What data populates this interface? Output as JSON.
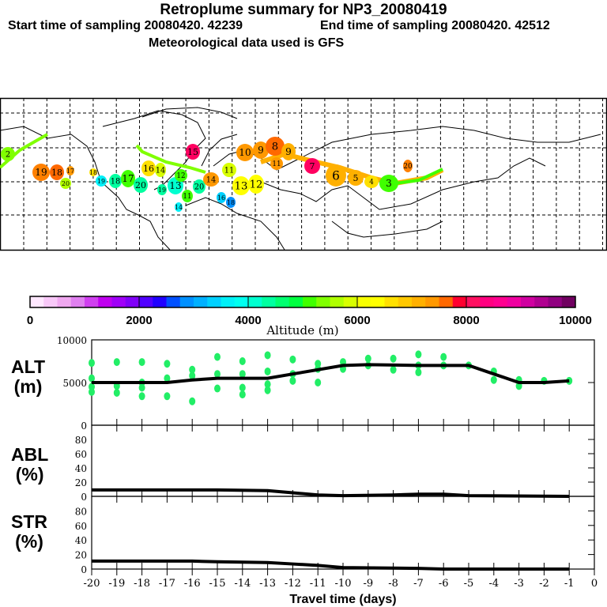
{
  "title": "Retroplume summary for NP3_20080419",
  "subtitle_start": "Start time of sampling 20080420. 42239",
  "subtitle_end": "End time of sampling 20080420. 42512",
  "subtitle_met": "Meteorological data used is GFS",
  "colorbar": {
    "label": "Altitude (m)",
    "ticks": [
      "0",
      "2000",
      "4000",
      "6000",
      "8000",
      "10000"
    ],
    "range": [
      0,
      10000
    ],
    "colors": [
      "#ffe8ff",
      "#f8c8f8",
      "#f0a8f0",
      "#e080f0",
      "#d040f0",
      "#c000f0",
      "#a000f8",
      "#8000f8",
      "#5000ff",
      "#2000ff",
      "#0050ff",
      "#0090ff",
      "#00b0ff",
      "#00d0ff",
      "#00f0f8",
      "#00fff0",
      "#00ffd0",
      "#00ffa0",
      "#00ff70",
      "#00ff40",
      "#40ff00",
      "#80ff00",
      "#b0ff00",
      "#d8ff00",
      "#f8ff00",
      "#ffff00",
      "#ffe000",
      "#ffc800",
      "#ffb000",
      "#ff9800",
      "#ff6800",
      "#ff0030",
      "#ff1060",
      "#ff0080",
      "#ff0090",
      "#f000a0",
      "#d000a0",
      "#b00090",
      "#900080",
      "#700060"
    ]
  },
  "map_markers": [
    {
      "label": "2",
      "color": "#80ff00"
    },
    {
      "label": "19",
      "color": "#ff8000"
    },
    {
      "label": "18",
      "color": "#ff6800"
    },
    {
      "label": "17",
      "color": "#ff9800"
    },
    {
      "label": "20",
      "color": "#b0ff00"
    },
    {
      "label": "18",
      "color": "#ffe000"
    },
    {
      "label": "19",
      "color": "#00f0f8"
    },
    {
      "label": "18",
      "color": "#00ffa0"
    },
    {
      "label": "17",
      "color": "#40ff00"
    },
    {
      "label": "20",
      "color": "#00ffa0"
    },
    {
      "label": "16",
      "color": "#ffe000"
    },
    {
      "label": "14",
      "color": "#d8ff00"
    },
    {
      "label": "19",
      "color": "#00ffa0"
    },
    {
      "label": "13",
      "color": "#00ffd0"
    },
    {
      "label": "12",
      "color": "#40ff00"
    },
    {
      "label": "11",
      "color": "#40ff00"
    },
    {
      "label": "20",
      "color": "#00ffa0"
    },
    {
      "label": "14",
      "color": "#00f0f8"
    },
    {
      "label": "14",
      "color": "#ff9800"
    },
    {
      "label": "15",
      "color": "#ff0060"
    },
    {
      "label": "16",
      "color": "#00d0ff"
    },
    {
      "label": "18",
      "color": "#0090ff"
    },
    {
      "label": "11",
      "color": "#d8ff00"
    },
    {
      "label": "13",
      "color": "#ffff00"
    },
    {
      "label": "12",
      "color": "#ffff00"
    },
    {
      "label": "10",
      "color": "#ff9800"
    },
    {
      "label": "9",
      "color": "#ff9800"
    },
    {
      "label": "8",
      "color": "#ff6800"
    },
    {
      "label": "9",
      "color": "#ffb000"
    },
    {
      "label": "11",
      "color": "#ff9800"
    },
    {
      "label": "7",
      "color": "#ff0060"
    },
    {
      "label": "6",
      "color": "#ffb000"
    },
    {
      "label": "5",
      "color": "#ffb000"
    },
    {
      "label": "4",
      "color": "#ffe000"
    },
    {
      "label": "3",
      "color": "#40ff00"
    },
    {
      "label": "20",
      "color": "#ff8000"
    }
  ],
  "chart_data": [
    {
      "type": "line",
      "title": "ALT",
      "ylabel": "ALT (m)",
      "ylim": [
        0,
        10000
      ],
      "yticks": [
        "10000",
        "5000",
        "0"
      ],
      "x": [
        -20,
        -17,
        -16,
        -15,
        -13,
        -12,
        -10,
        -9,
        -7,
        -5,
        -4,
        -3,
        -2,
        -1
      ],
      "series": [
        {
          "name": "median altitude",
          "values": [
            5000,
            5000,
            5300,
            5500,
            5500,
            6000,
            7000,
            7100,
            7000,
            7000,
            6000,
            5000,
            5000,
            5200
          ]
        }
      ],
      "scatter": {
        "name": "plume clusters",
        "color": "#22ee66",
        "points": [
          [
            -20,
            7300
          ],
          [
            -20,
            5500
          ],
          [
            -20,
            4500
          ],
          [
            -20,
            3900
          ],
          [
            -19,
            7400
          ],
          [
            -19,
            4600
          ],
          [
            -19,
            3800
          ],
          [
            -18,
            7400
          ],
          [
            -18,
            5000
          ],
          [
            -18,
            4400
          ],
          [
            -18,
            3400
          ],
          [
            -17,
            7200
          ],
          [
            -17,
            5500
          ],
          [
            -17,
            3400
          ],
          [
            -16,
            6500
          ],
          [
            -16,
            5800
          ],
          [
            -16,
            2800
          ],
          [
            -15,
            8000
          ],
          [
            -15,
            6000
          ],
          [
            -15,
            4300
          ],
          [
            -14,
            7500
          ],
          [
            -14,
            6000
          ],
          [
            -14,
            4400
          ],
          [
            -14,
            3600
          ],
          [
            -13,
            8200
          ],
          [
            -13,
            6300
          ],
          [
            -13,
            4800
          ],
          [
            -13,
            4100
          ],
          [
            -12,
            7700
          ],
          [
            -12,
            6000
          ],
          [
            -12,
            5200
          ],
          [
            -11,
            7200
          ],
          [
            -11,
            6600
          ],
          [
            -11,
            5000
          ],
          [
            -10,
            7400
          ],
          [
            -10,
            6600
          ],
          [
            -9,
            7800
          ],
          [
            -9,
            7000
          ],
          [
            -8,
            7800
          ],
          [
            -8,
            6500
          ],
          [
            -7,
            8300
          ],
          [
            -7,
            7000
          ],
          [
            -7,
            6200
          ],
          [
            -6,
            8000
          ],
          [
            -6,
            7000
          ],
          [
            -5,
            7000
          ],
          [
            -4,
            6300
          ],
          [
            -4,
            5300
          ],
          [
            -3,
            5300
          ],
          [
            -3,
            4600
          ],
          [
            -2,
            5200
          ],
          [
            -1,
            5200
          ]
        ]
      }
    },
    {
      "type": "line",
      "title": "ABL",
      "ylabel": "ABL (%)",
      "ylim": [
        0,
        100
      ],
      "yticks": [
        "80",
        "60",
        "40",
        "20",
        "0"
      ],
      "x": [
        -20,
        -15,
        -13,
        -12,
        -11,
        -10,
        -8,
        -7,
        -6,
        -5,
        -1
      ],
      "series": [
        {
          "name": "ABL fraction",
          "values": [
            9,
            9,
            8,
            5,
            2,
            1,
            2,
            3,
            3,
            1,
            0
          ]
        }
      ]
    },
    {
      "type": "line",
      "title": "STR",
      "ylabel": "STR (%)",
      "ylim": [
        0,
        100
      ],
      "yticks": [
        "80",
        "60",
        "40",
        "20",
        "0"
      ],
      "x": [
        -20,
        -16,
        -15,
        -13,
        -12,
        -11,
        -10,
        -7,
        -6,
        -1
      ],
      "series": [
        {
          "name": "STR fraction",
          "values": [
            11,
            11,
            10,
            9,
            7,
            5,
            2,
            1,
            0,
            0
          ]
        }
      ]
    }
  ],
  "xaxis": {
    "label": "Travel time (days)",
    "ticks": [
      "-20",
      "-19",
      "-18",
      "-17",
      "-16",
      "-15",
      "-14",
      "-13",
      "-12",
      "-11",
      "-10",
      "-9",
      "-8",
      "-7",
      "-6",
      "-5",
      "-4",
      "-3",
      "-2",
      "-1",
      "0"
    ]
  },
  "panel_labels": {
    "alt": [
      "ALT",
      "(m)"
    ],
    "abl": [
      "ABL",
      "(%)"
    ],
    "str": [
      "STR",
      "(%)"
    ]
  }
}
